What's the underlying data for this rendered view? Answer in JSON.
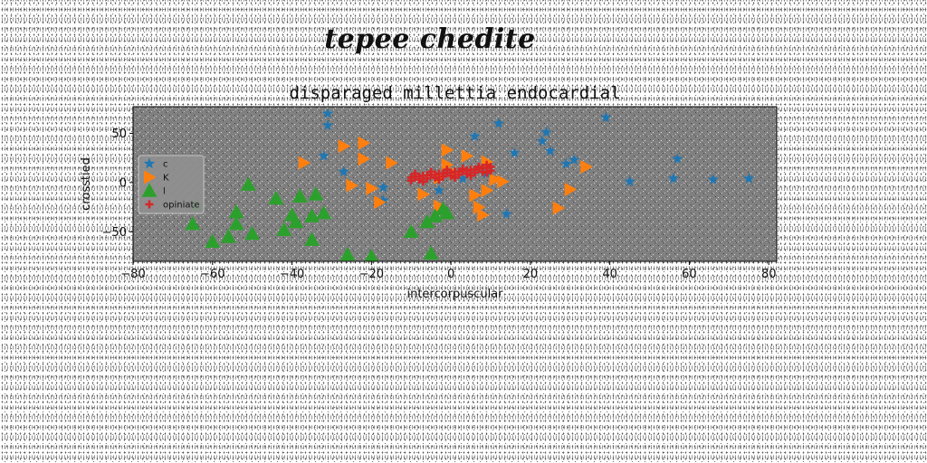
{
  "suptitle": "tepee chedite",
  "chart_data": {
    "type": "scatter",
    "title": "disparaged millettia endocardial",
    "xlabel": "intercorpuscular",
    "ylabel": "crosstied",
    "xlim": [
      -80,
      82
    ],
    "ylim": [
      -80,
      77
    ],
    "xticks": [
      -80,
      -60,
      -40,
      -20,
      0,
      20,
      40,
      60,
      80
    ],
    "yticks": [
      -50,
      0,
      50
    ],
    "background": "#808080",
    "legend_position": "center-left",
    "series": [
      {
        "name": "c",
        "marker": "star",
        "color": "#1f77b4",
        "points": [
          [
            -31,
            70
          ],
          [
            -31,
            58
          ],
          [
            -32,
            27
          ],
          [
            -27,
            11
          ],
          [
            -17,
            -5
          ],
          [
            -17,
            -18
          ],
          [
            -3,
            -8
          ],
          [
            3,
            4
          ],
          [
            6,
            47
          ],
          [
            9,
            9
          ],
          [
            12,
            60
          ],
          [
            16,
            30
          ],
          [
            14,
            -32
          ],
          [
            23,
            42
          ],
          [
            24,
            51
          ],
          [
            25,
            32
          ],
          [
            29,
            19
          ],
          [
            31,
            23
          ],
          [
            39,
            66
          ],
          [
            45,
            1
          ],
          [
            56,
            4
          ],
          [
            57,
            24
          ],
          [
            66,
            3
          ],
          [
            75,
            4
          ]
        ]
      },
      {
        "name": "K",
        "marker": "triangle-right",
        "color": "#ff7f0e",
        "points": [
          [
            -37,
            20
          ],
          [
            -27,
            37
          ],
          [
            -22,
            40
          ],
          [
            -22,
            24
          ],
          [
            -15,
            20
          ],
          [
            -25,
            -3
          ],
          [
            -20,
            -6
          ],
          [
            -18,
            -20
          ],
          [
            -7,
            -12
          ],
          [
            -3,
            5
          ],
          [
            -3,
            -24
          ],
          [
            -1,
            18
          ],
          [
            -1,
            33
          ],
          [
            1,
            9
          ],
          [
            4,
            27
          ],
          [
            6,
            -13
          ],
          [
            7,
            -25
          ],
          [
            8,
            -33
          ],
          [
            9,
            21
          ],
          [
            9,
            -8
          ],
          [
            11,
            3
          ],
          [
            13,
            1
          ],
          [
            27,
            -26
          ],
          [
            30,
            -7
          ],
          [
            34,
            16
          ]
        ]
      },
      {
        "name": "l",
        "marker": "triangle-up",
        "color": "#2ca02c",
        "points": [
          [
            -64,
            -22
          ],
          [
            -65,
            -42
          ],
          [
            -60,
            -60
          ],
          [
            -56,
            -55
          ],
          [
            -54,
            -30
          ],
          [
            -54,
            -42
          ],
          [
            -50,
            -52
          ],
          [
            -51,
            -2
          ],
          [
            -44,
            -16
          ],
          [
            -42,
            -48
          ],
          [
            -40,
            -33
          ],
          [
            -39,
            -40
          ],
          [
            -38,
            -14
          ],
          [
            -35,
            -34
          ],
          [
            -35,
            -58
          ],
          [
            -34,
            -12
          ],
          [
            -32,
            -31
          ],
          [
            -26,
            -73
          ],
          [
            -20,
            -75
          ],
          [
            -10,
            -50
          ],
          [
            -6,
            -40
          ],
          [
            -4,
            -34
          ],
          [
            -2,
            -27
          ],
          [
            -5,
            -72
          ],
          [
            -1,
            -31
          ]
        ]
      },
      {
        "name": "opiniate",
        "marker": "plus",
        "color": "#d62728",
        "points": [
          [
            -10,
            5
          ],
          [
            -9,
            6
          ],
          [
            -8,
            6
          ],
          [
            -7,
            7
          ],
          [
            -6,
            7
          ],
          [
            -5,
            8
          ],
          [
            -4,
            8
          ],
          [
            -3,
            9
          ],
          [
            -2,
            9
          ],
          [
            -1,
            10
          ],
          [
            0,
            10
          ],
          [
            1,
            11
          ],
          [
            2,
            11
          ],
          [
            3,
            12
          ],
          [
            4,
            12
          ],
          [
            5,
            13
          ],
          [
            6,
            13
          ],
          [
            7,
            14
          ],
          [
            8,
            15
          ],
          [
            9,
            15
          ],
          [
            10,
            16
          ],
          [
            -10,
            2
          ],
          [
            -8,
            3
          ],
          [
            -6,
            4
          ],
          [
            -4,
            5
          ],
          [
            -2,
            6
          ],
          [
            0,
            7
          ],
          [
            2,
            8
          ],
          [
            4,
            9
          ],
          [
            6,
            10
          ],
          [
            8,
            11
          ],
          [
            10,
            12
          ],
          [
            -9,
            9
          ],
          [
            -5,
            11
          ],
          [
            -1,
            13
          ],
          [
            3,
            14
          ],
          [
            7,
            16
          ],
          [
            9,
            18
          ],
          [
            -7,
            1
          ],
          [
            -3,
            3
          ],
          [
            1,
            5
          ],
          [
            5,
            7
          ],
          [
            9,
            10
          ]
        ]
      }
    ]
  }
}
